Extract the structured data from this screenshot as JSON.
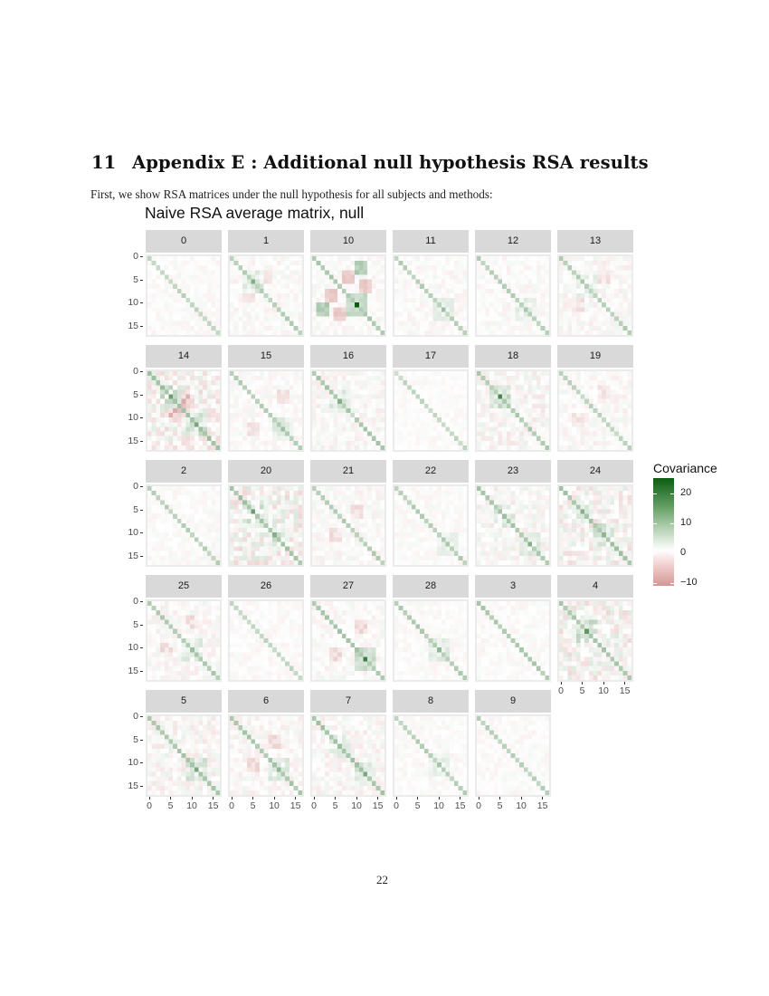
{
  "section": {
    "number": "11",
    "title": "Appendix E : Additional null hypothesis RSA results"
  },
  "intro_text": "First, we show RSA matrices under the null hypothesis for all subjects and methods:",
  "figure": {
    "title": "Naive RSA average matrix, null",
    "y_ticks": [
      "0",
      "5",
      "10",
      "15"
    ],
    "x_ticks": [
      "0",
      "5",
      "10",
      "15"
    ],
    "legend": {
      "title": "Covariance",
      "labels": [
        "20",
        "10",
        "0",
        "−10"
      ],
      "colors": {
        "high": "#0b5d12",
        "mid": "#ffffff",
        "low": "#d49794"
      }
    },
    "panels": [
      {
        "label": "0",
        "diag": 0.22,
        "noise": 0.05,
        "blocks": []
      },
      {
        "label": "1",
        "diag": 0.25,
        "noise": 0.07,
        "blocks": [
          [
            5,
            5,
            0.5
          ],
          [
            8,
            4,
            -0.15
          ]
        ]
      },
      {
        "label": "10",
        "diag": 0.3,
        "noise": 0.06,
        "blocks": [
          [
            10,
            10,
            1.0
          ],
          [
            11,
            2,
            0.45
          ],
          [
            8,
            4,
            -0.3
          ],
          [
            12,
            6,
            -0.3
          ]
        ]
      },
      {
        "label": "11",
        "diag": 0.25,
        "noise": 0.06,
        "blocks": [
          [
            11,
            11,
            0.4
          ]
        ]
      },
      {
        "label": "12",
        "diag": 0.25,
        "noise": 0.06,
        "blocks": [
          [
            11,
            11,
            0.35
          ]
        ]
      },
      {
        "label": "13",
        "diag": 0.26,
        "noise": 0.08,
        "blocks": [
          [
            6,
            6,
            0.3
          ],
          [
            10,
            4,
            -0.15
          ]
        ]
      },
      {
        "label": "14",
        "diag": 0.35,
        "noise": 0.15,
        "blocks": [
          [
            5,
            5,
            0.6
          ],
          [
            11,
            11,
            0.55
          ],
          [
            5,
            10,
            -0.3
          ],
          [
            9,
            6,
            -0.3
          ]
        ]
      },
      {
        "label": "15",
        "diag": 0.26,
        "noise": 0.06,
        "blocks": [
          [
            12,
            12,
            0.4
          ],
          [
            12,
            5,
            -0.15
          ]
        ]
      },
      {
        "label": "16",
        "diag": 0.3,
        "noise": 0.08,
        "blocks": [
          [
            6,
            6,
            0.5
          ],
          [
            8,
            10,
            -0.2
          ]
        ]
      },
      {
        "label": "17",
        "diag": 0.2,
        "noise": 0.04,
        "blocks": []
      },
      {
        "label": "18",
        "diag": 0.28,
        "noise": 0.1,
        "blocks": [
          [
            5,
            5,
            0.75
          ],
          [
            5,
            11,
            -0.25
          ]
        ]
      },
      {
        "label": "19",
        "diag": 0.22,
        "noise": 0.07,
        "blocks": [
          [
            10,
            4,
            -0.15
          ]
        ]
      },
      {
        "label": "2",
        "diag": 0.24,
        "noise": 0.05,
        "blocks": []
      },
      {
        "label": "20",
        "diag": 0.33,
        "noise": 0.16,
        "blocks": [
          [
            5,
            5,
            0.6
          ],
          [
            10,
            10,
            0.5
          ],
          [
            5,
            9,
            -0.35
          ]
        ]
      },
      {
        "label": "21",
        "diag": 0.27,
        "noise": 0.07,
        "blocks": [
          [
            10,
            5,
            -0.15
          ]
        ]
      },
      {
        "label": "22",
        "diag": 0.26,
        "noise": 0.05,
        "blocks": [
          [
            12,
            12,
            0.35
          ]
        ]
      },
      {
        "label": "23",
        "diag": 0.3,
        "noise": 0.1,
        "blocks": [
          [
            6,
            6,
            0.4
          ],
          [
            12,
            12,
            0.5
          ],
          [
            6,
            10,
            -0.25
          ]
        ]
      },
      {
        "label": "24",
        "diag": 0.32,
        "noise": 0.14,
        "blocks": [
          [
            5,
            5,
            0.5
          ],
          [
            10,
            10,
            0.45
          ],
          [
            6,
            10,
            -0.3
          ]
        ]
      },
      {
        "label": "25",
        "diag": 0.28,
        "noise": 0.08,
        "blocks": [
          [
            10,
            10,
            0.4
          ],
          [
            10,
            4,
            -0.15
          ]
        ]
      },
      {
        "label": "26",
        "diag": 0.22,
        "noise": 0.05,
        "blocks": []
      },
      {
        "label": "27",
        "diag": 0.3,
        "noise": 0.07,
        "blocks": [
          [
            12,
            12,
            0.8
          ],
          [
            11,
            5,
            -0.2
          ]
        ]
      },
      {
        "label": "28",
        "diag": 0.28,
        "noise": 0.05,
        "blocks": [
          [
            10,
            10,
            0.45
          ]
        ]
      },
      {
        "label": "3",
        "diag": 0.28,
        "noise": 0.05,
        "blocks": []
      },
      {
        "label": "4",
        "diag": 0.3,
        "noise": 0.15,
        "blocks": [
          [
            6,
            6,
            0.65
          ],
          [
            5,
            10,
            -0.3
          ]
        ]
      },
      {
        "label": "5",
        "diag": 0.3,
        "noise": 0.1,
        "blocks": [
          [
            11,
            11,
            0.55
          ],
          [
            7,
            10,
            -0.2
          ]
        ]
      },
      {
        "label": "6",
        "diag": 0.3,
        "noise": 0.08,
        "blocks": [
          [
            11,
            11,
            0.45
          ],
          [
            10,
            5,
            -0.2
          ]
        ]
      },
      {
        "label": "7",
        "diag": 0.32,
        "noise": 0.09,
        "blocks": [
          [
            6,
            6,
            0.4
          ],
          [
            12,
            12,
            0.55
          ],
          [
            6,
            12,
            -0.3
          ]
        ]
      },
      {
        "label": "8",
        "diag": 0.25,
        "noise": 0.05,
        "blocks": [
          [
            10,
            10,
            0.35
          ]
        ]
      },
      {
        "label": "9",
        "diag": 0.24,
        "noise": 0.05,
        "blocks": []
      }
    ]
  },
  "page_number": "22"
}
